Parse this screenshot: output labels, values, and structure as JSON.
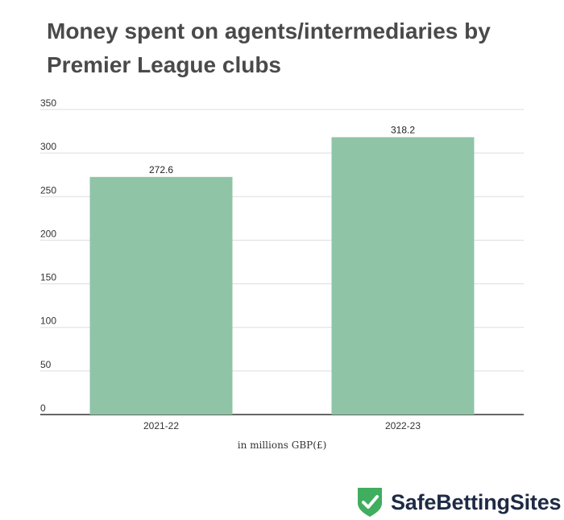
{
  "chart_data": {
    "type": "bar",
    "title": "Money spent on agents/intermediaries by Premier League clubs",
    "categories": [
      "2021-22",
      "2022-23"
    ],
    "values": [
      272.6,
      318.2
    ],
    "data_labels": [
      "272.6",
      "318.2"
    ],
    "xlabel": "in millions GBP(£)",
    "ylabel": "",
    "ylim": [
      0,
      350
    ],
    "yticks": [
      0,
      50,
      100,
      150,
      200,
      250,
      300,
      350
    ],
    "grid": true,
    "legend": "none",
    "bar_color": "#8fc4a7"
  },
  "branding": {
    "logo_text": "SafeBettingSites",
    "logo_color": "#3fae5f",
    "icon": "shield-check-icon"
  }
}
